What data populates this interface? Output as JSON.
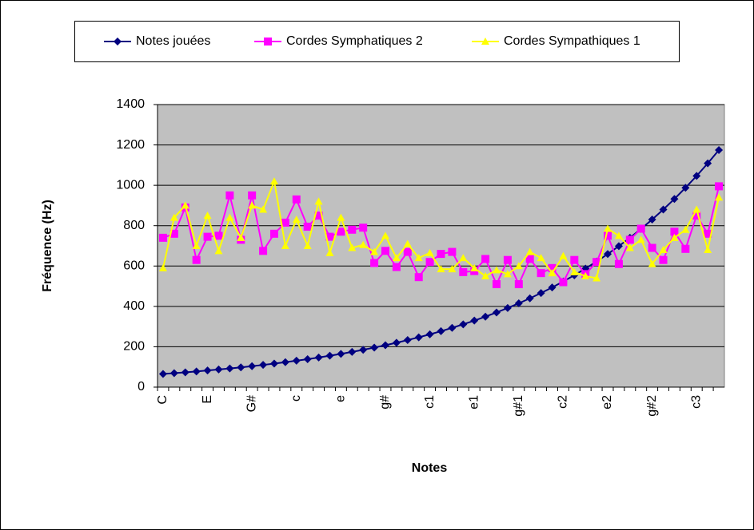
{
  "chart_data": {
    "type": "line",
    "x_label": "Notes",
    "y_label": "Fréquence (Hz)",
    "categories": [
      "C",
      null,
      null,
      null,
      "E",
      null,
      null,
      null,
      "G#",
      null,
      null,
      null,
      "c",
      null,
      null,
      null,
      "e",
      null,
      null,
      null,
      "g#",
      null,
      null,
      null,
      "c1",
      null,
      null,
      null,
      "e1",
      null,
      null,
      null,
      "g#1",
      null,
      null,
      null,
      "c2",
      null,
      null,
      null,
      "e2",
      null,
      null,
      null,
      "g#2",
      null,
      null,
      null,
      "c3",
      null,
      null
    ],
    "series": [
      {
        "name": "Notes jouées",
        "color": "#000080",
        "marker": "diamond",
        "values": [
          65.4,
          69.3,
          73.4,
          77.8,
          82.4,
          87.3,
          92.5,
          98.0,
          103.8,
          110.0,
          116.5,
          123.5,
          130.8,
          138.6,
          146.8,
          155.6,
          164.8,
          174.6,
          185.0,
          196.0,
          207.7,
          220.0,
          233.1,
          246.9,
          261.6,
          277.2,
          293.7,
          311.1,
          329.6,
          349.2,
          370.0,
          392.0,
          415.3,
          440.0,
          466.2,
          493.9,
          523.3,
          554.4,
          587.3,
          622.3,
          659.3,
          698.5,
          740.0,
          784.0,
          830.6,
          880.0,
          932.3,
          987.8,
          1046.5,
          1108.7,
          1174.7
        ]
      },
      {
        "name": "Cordes Symphatiques 2",
        "color": "#ff00ff",
        "marker": "square",
        "values": [
          740,
          760,
          890,
          630,
          745,
          750,
          950,
          730,
          950,
          675,
          760,
          815,
          930,
          795,
          850,
          745,
          770,
          780,
          790,
          615,
          675,
          595,
          670,
          545,
          620,
          660,
          670,
          570,
          575,
          635,
          510,
          630,
          510,
          635,
          565,
          590,
          520,
          630,
          560,
          620,
          750,
          610,
          730,
          785,
          690,
          630,
          770,
          685,
          850,
          760,
          995
        ]
      },
      {
        "name": "Cordes Sympathiques 1",
        "color": "#ffff00",
        "marker": "triangle",
        "values": [
          590,
          840,
          900,
          700,
          850,
          675,
          840,
          740,
          900,
          880,
          1020,
          700,
          830,
          700,
          920,
          665,
          840,
          690,
          705,
          670,
          750,
          640,
          710,
          640,
          665,
          585,
          585,
          640,
          590,
          550,
          580,
          560,
          600,
          670,
          640,
          565,
          650,
          570,
          550,
          540,
          785,
          750,
          690,
          730,
          610,
          680,
          740,
          780,
          880,
          680,
          940
        ]
      }
    ],
    "ylim": [
      0,
      1400
    ],
    "yticks": [
      0,
      200,
      400,
      600,
      800,
      1000,
      1200,
      1400
    ],
    "grid": true,
    "legend": "top",
    "plot_background": "#c0c0c0"
  }
}
